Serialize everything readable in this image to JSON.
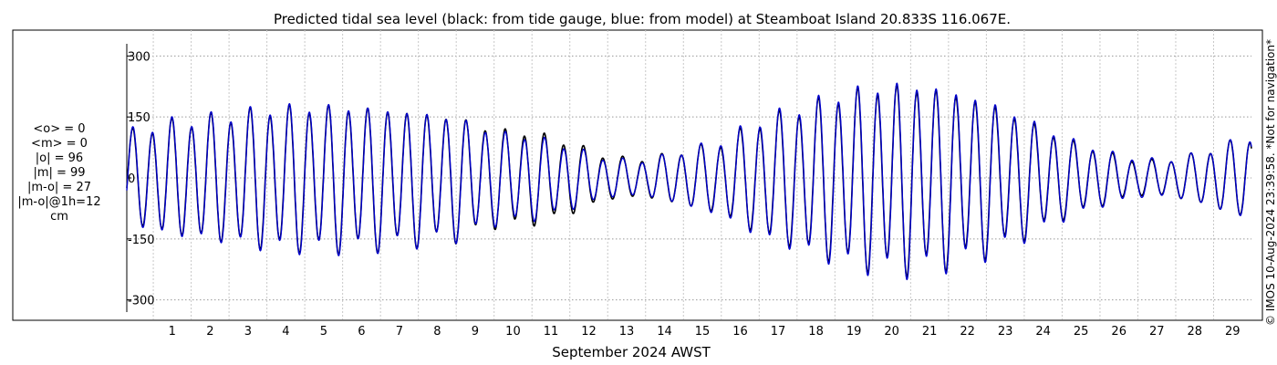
{
  "chart_data": {
    "type": "line",
    "title": "Predicted tidal sea level (black: from tide gauge, blue: from model) at Steamboat Island 20.833S 116.067E.",
    "xlabel": "September 2024 AWST",
    "ylabel": "",
    "x_range_days": [
      0.3,
      30.0
    ],
    "ylim": [
      -330,
      330
    ],
    "yticks": [
      300,
      150,
      0,
      -150,
      -300
    ],
    "ytick_labels": [
      "300",
      "150",
      "0",
      "-150",
      "-300"
    ],
    "xticks": [
      1,
      2,
      3,
      4,
      5,
      6,
      7,
      8,
      9,
      10,
      11,
      12,
      13,
      14,
      15,
      16,
      17,
      18,
      19,
      20,
      21,
      22,
      23,
      24,
      25,
      26,
      27,
      28,
      29
    ],
    "xtick_labels": [
      "1",
      "2",
      "3",
      "4",
      "5",
      "6",
      "7",
      "8",
      "9",
      "10",
      "11",
      "12",
      "13",
      "14",
      "15",
      "16",
      "17",
      "18",
      "19",
      "20",
      "21",
      "22",
      "23",
      "24",
      "25",
      "26",
      "27",
      "28",
      "29"
    ],
    "grid": true,
    "series": [
      {
        "name": "tide gauge",
        "color": "#000000",
        "line": "black: from tide gauge",
        "envelope_days": [
          0.3,
          1,
          2,
          3,
          4,
          5,
          6,
          7,
          8,
          9,
          10,
          11,
          12,
          13,
          14,
          15,
          16,
          17,
          18,
          19,
          20,
          21,
          22,
          23,
          24,
          25,
          26,
          27,
          28,
          29,
          30
        ],
        "envelope_amplitude_cm": [
          105,
          125,
          140,
          150,
          165,
          170,
          170,
          165,
          155,
          145,
          115,
          110,
          85,
          50,
          45,
          65,
          85,
          135,
          165,
          195,
          215,
          220,
          205,
          180,
          140,
          95,
          65,
          40,
          45,
          70,
          100
        ]
      },
      {
        "name": "model",
        "color": "#0000cc",
        "line": "blue: from model",
        "envelope_days": [
          0.3,
          1,
          2,
          3,
          4,
          5,
          6,
          7,
          8,
          9,
          10,
          11,
          12,
          13,
          14,
          15,
          16,
          17,
          18,
          19,
          20,
          21,
          22,
          23,
          24,
          25,
          26,
          27,
          28,
          29,
          30
        ],
        "envelope_amplitude_cm": [
          108,
          128,
          142,
          152,
          168,
          172,
          172,
          166,
          156,
          145,
          110,
          100,
          75,
          45,
          42,
          65,
          90,
          140,
          170,
          200,
          220,
          225,
          210,
          185,
          145,
          100,
          68,
          45,
          45,
          70,
          102
        ]
      }
    ]
  },
  "stats": {
    "mean_obs": "<o> = 0",
    "mean_model": "<m> = 0",
    "abs_obs": "|o| = 96",
    "abs_model": "|m| = 99",
    "abs_diff": "|m-o| = 27",
    "abs_diff_1h": "|m-o|@1h=12",
    "unit": "cm"
  },
  "side_note": "© IMOS 10-Aug-2024 23:39:58. *Not for navigation*",
  "colors": {
    "gauge": "#000000",
    "model": "#0000cc",
    "grid": "#999999"
  }
}
